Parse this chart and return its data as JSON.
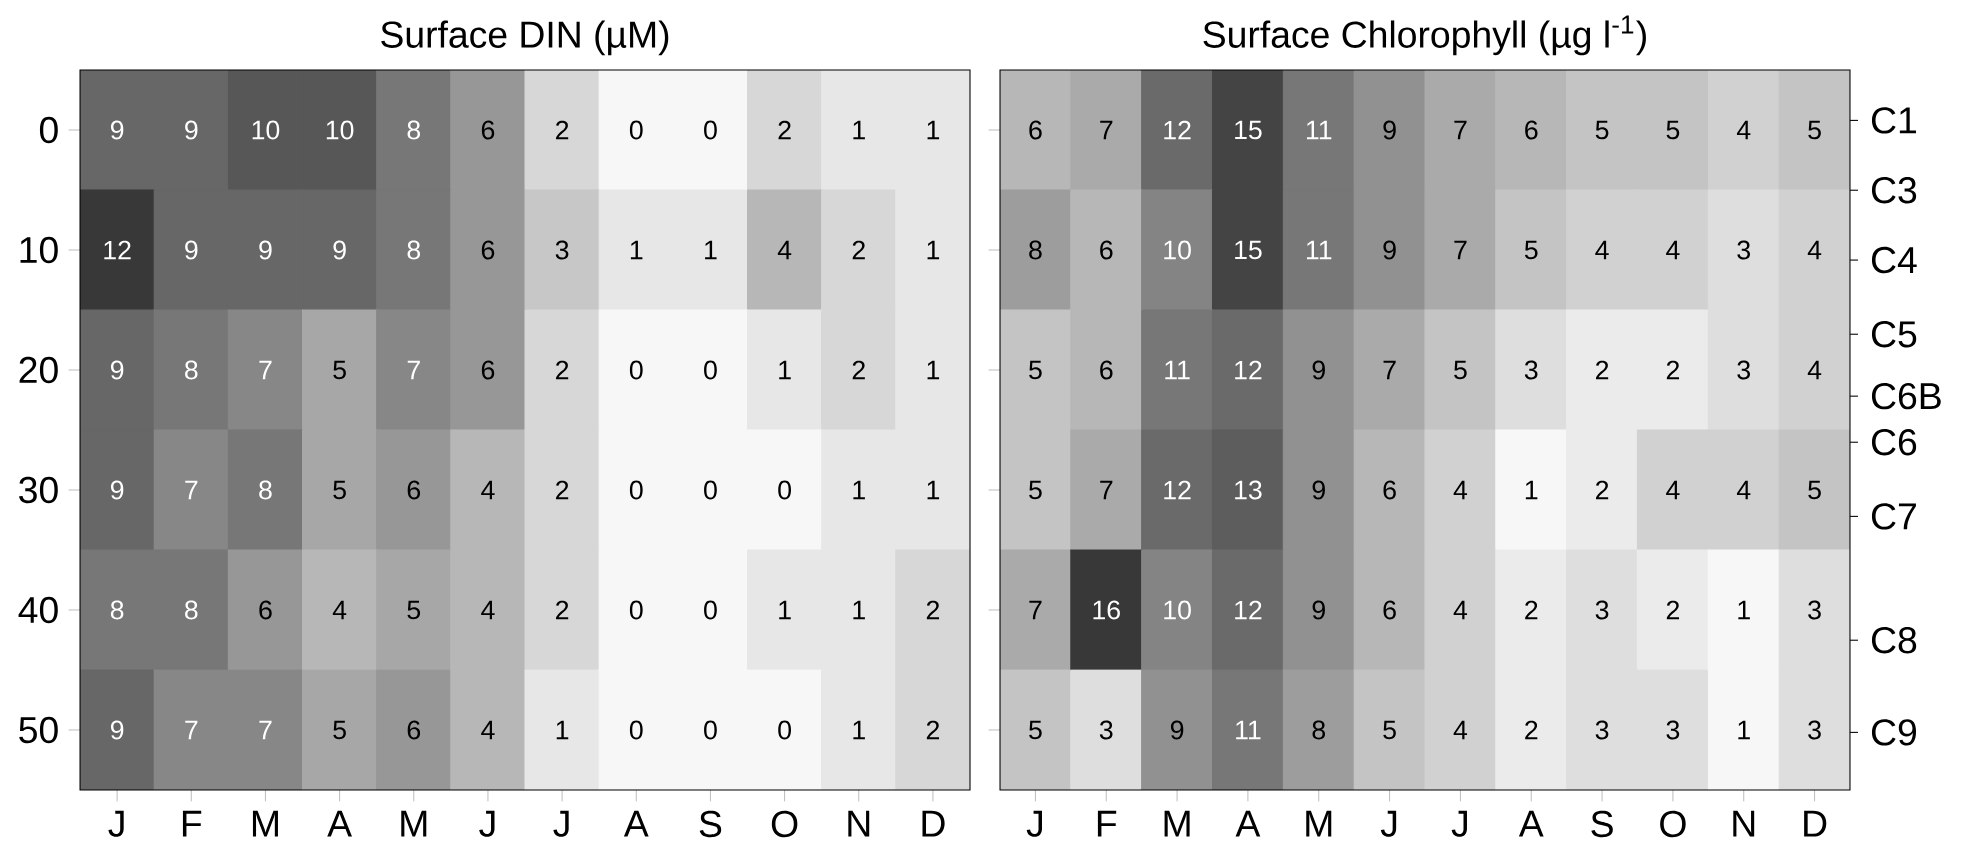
{
  "chart_data": [
    {
      "type": "heatmap",
      "title": "Surface DIN (µM)",
      "categories": [
        "J",
        "F",
        "M",
        "A",
        "M",
        "J",
        "J",
        "A",
        "S",
        "O",
        "N",
        "D"
      ],
      "y_categories": [
        "0",
        "10",
        "20",
        "30",
        "40",
        "50"
      ],
      "data_labels": true,
      "cells": [
        [
          9,
          9,
          10,
          10,
          8,
          6,
          2,
          0,
          0,
          2,
          1,
          1
        ],
        [
          12,
          9,
          9,
          9,
          8,
          6,
          3,
          1,
          1,
          4,
          2,
          1
        ],
        [
          9,
          8,
          7,
          5,
          7,
          6,
          2,
          0,
          0,
          1,
          2,
          1
        ],
        [
          9,
          7,
          8,
          5,
          6,
          4,
          2,
          0,
          0,
          0,
          1,
          1
        ],
        [
          8,
          8,
          6,
          4,
          5,
          4,
          2,
          0,
          0,
          1,
          1,
          2
        ],
        [
          9,
          7,
          7,
          5,
          6,
          4,
          1,
          0,
          0,
          0,
          1,
          2
        ]
      ]
    },
    {
      "type": "heatmap",
      "title": "Surface Chlorophyll (µg l$^{-1}$)",
      "categories": [
        "J",
        "F",
        "M",
        "A",
        "M",
        "J",
        "J",
        "A",
        "S",
        "O",
        "N",
        "D"
      ],
      "y_categories": [
        "0",
        "10",
        "20",
        "30",
        "40",
        "50"
      ],
      "tick_labels": "x",
      "data_labels": true,
      "cells": [
        [
          6,
          7,
          12,
          15,
          11,
          9,
          7,
          6,
          5,
          5,
          4,
          5
        ],
        [
          8,
          6,
          10,
          15,
          11,
          9,
          7,
          5,
          4,
          4,
          3,
          4
        ],
        [
          5,
          6,
          11,
          12,
          9,
          7,
          5,
          3,
          2,
          2,
          3,
          4
        ],
        [
          5,
          7,
          12,
          13,
          9,
          6,
          4,
          1,
          2,
          4,
          4,
          5
        ],
        [
          7,
          16,
          10,
          12,
          9,
          6,
          4,
          2,
          3,
          2,
          1,
          3
        ],
        [
          5,
          3,
          9,
          11,
          8,
          5,
          4,
          2,
          3,
          3,
          1,
          3
        ]
      ],
      "annotations": [
        "C1",
        "C3",
        "C4",
        "C5",
        "C6B",
        "C6",
        "C7",
        "C8",
        "C9"
      ]
    }
  ]
}
